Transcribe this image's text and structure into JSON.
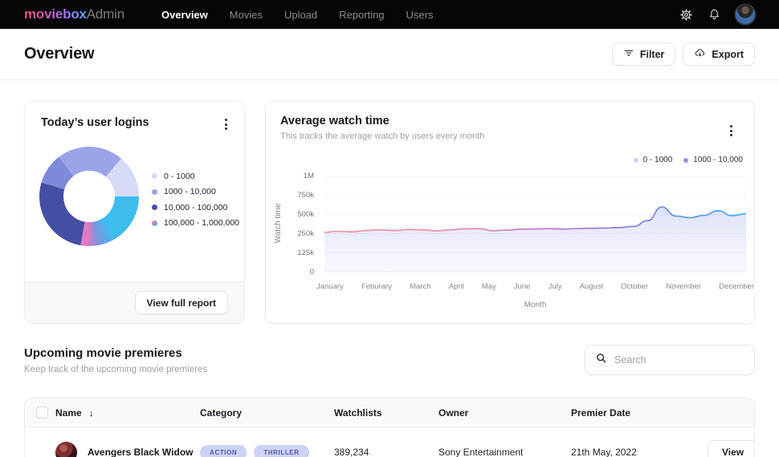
{
  "nav": {
    "brand": "moviebox",
    "brand_suffix": "Admin",
    "items": [
      {
        "label": "Overview",
        "active": true
      },
      {
        "label": "Movies",
        "active": false
      },
      {
        "label": "Upload",
        "active": false
      },
      {
        "label": "Reporting",
        "active": false
      },
      {
        "label": "Users",
        "active": false
      }
    ]
  },
  "header": {
    "title": "Overview",
    "filter": "Filter",
    "export": "Export"
  },
  "icons": {
    "sort_desc": "↓"
  },
  "logins_card": {
    "title": "Today’s user logins",
    "legend": [
      {
        "label": "0 - 1000",
        "color": "#d6daf6"
      },
      {
        "label": "1000 - 10,000",
        "color": "#9aa4e8"
      },
      {
        "label": "10,000 - 100,000",
        "color": "#444fa4"
      },
      {
        "label": "100,000 - 1,000,000",
        "color": "linear-gradient(135deg,#ec77c0 20%,#55b0e8 85%)"
      }
    ],
    "footer_button": "View full report"
  },
  "watch_card": {
    "title": "Average watch time",
    "subtitle": "This tracks the average watch by users every month",
    "legend": [
      {
        "label": "0 - 1000",
        "color": "#ccd3f6"
      },
      {
        "label": "1000 - 10,000",
        "color": "#8e9ae4"
      }
    ],
    "ylabel": "Watch time",
    "xlabel": "Month"
  },
  "chart_data": [
    {
      "type": "pie",
      "title": "Today’s user logins",
      "labels": [
        "0 - 1000",
        "1000 - 10,000",
        "10,000 - 100,000",
        "100,000 - 1,000,000"
      ],
      "values_percent": [
        14,
        31,
        27,
        28
      ],
      "colors": [
        "#d6daf6",
        "#9aa4e8",
        "#444fa4",
        "#ec77c0→#3dbcee gradient"
      ],
      "css_segments": [
        "#9aa4e8 0deg 40deg",
        "#d6daf6 40deg 90deg",
        "#3dbcee 90deg 148deg",
        "#7f93dd 170deg",
        "#e678c2 183deg 190deg",
        "#444fa4 190deg 286deg",
        "#7e89da 286deg 322deg",
        "#9aa4e8 322deg 360deg"
      ],
      "legend_position": "right",
      "donut_hole_ratio": 0.5
    },
    {
      "type": "line",
      "title": "Average watch time",
      "x": [
        "January",
        "Feburary",
        "March",
        "April",
        "May",
        "June",
        "July",
        "August",
        "October",
        "November",
        "December"
      ],
      "monthly_values_k": [
        268,
        292,
        305,
        300,
        288,
        312,
        316,
        330,
        600,
        490,
        510
      ],
      "samples_k": [
        268,
        280,
        273,
        292,
        300,
        290,
        305,
        298,
        286,
        300,
        312,
        316,
        288,
        296,
        308,
        312,
        315,
        310,
        316,
        320,
        324,
        330,
        345,
        420,
        600,
        480,
        458,
        490,
        550,
        485,
        510
      ],
      "yticks_top_to_bottom": [
        "1M",
        "750k",
        "500k",
        "250k",
        "125k",
        "0"
      ],
      "ytick_values_k": [
        0,
        125,
        250,
        500,
        750,
        1000
      ],
      "ylim_k": [
        0,
        1000
      ],
      "xlabel": "Month",
      "ylabel": "Watch time",
      "grid": "horizontal",
      "legend_position": "top-right",
      "line_gradient": [
        {
          "o": "0%",
          "c": "#f4999b"
        },
        {
          "o": "30%",
          "c": "#ee8fa8"
        },
        {
          "o": "50%",
          "c": "#c77fca"
        },
        {
          "o": "68%",
          "c": "#9d7fd8"
        },
        {
          "o": "82%",
          "c": "#6b97e2"
        },
        {
          "o": "100%",
          "c": "#3eb5ee"
        }
      ],
      "area_gradient": [
        {
          "o": "0%",
          "c": "rgba(167,178,238,0.38)"
        },
        {
          "o": "100%",
          "c": "rgba(224,229,249,0.24)"
        }
      ],
      "grid_color": "#edeff4"
    }
  ],
  "premieres": {
    "title": "Upcoming movie premieres",
    "subtitle": "Keep track of the upcoming movie premieres",
    "search_placeholder": "Search",
    "badge_bg": "#cdd3f5",
    "badge_text": "#4d57a9",
    "table": {
      "columns": [
        "Name",
        "Category",
        "Watchlists",
        "Owner",
        "Premier Date"
      ],
      "rows": [
        {
          "name": "Avengers Black Widow",
          "categories": [
            "ACTION",
            "THRILLER"
          ],
          "watchlists": "389,234",
          "owner": "Sony Entertainment",
          "premier_date": "21th May, 2022",
          "action": "View"
        }
      ]
    }
  }
}
